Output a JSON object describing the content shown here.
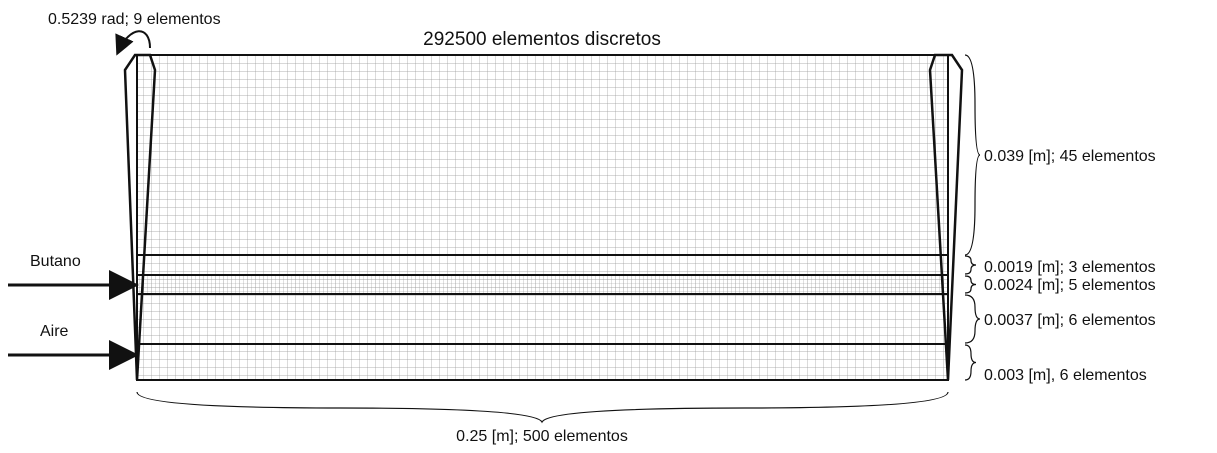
{
  "title": "292500 elementos discretos",
  "angle_label": "0.5239 rad; 9 elementos",
  "width_label": "0.25 [m]; 500 elementos",
  "layers": [
    "0.039 [m]; 45 elementos",
    "0.0019 [m]; 3 elementos",
    "0.0024 [m]; 5 elementos",
    "0.0037 [m]; 6 elementos",
    "0.003 [m], 6 elementos"
  ],
  "inlets": [
    "Butano",
    "Aire"
  ]
}
